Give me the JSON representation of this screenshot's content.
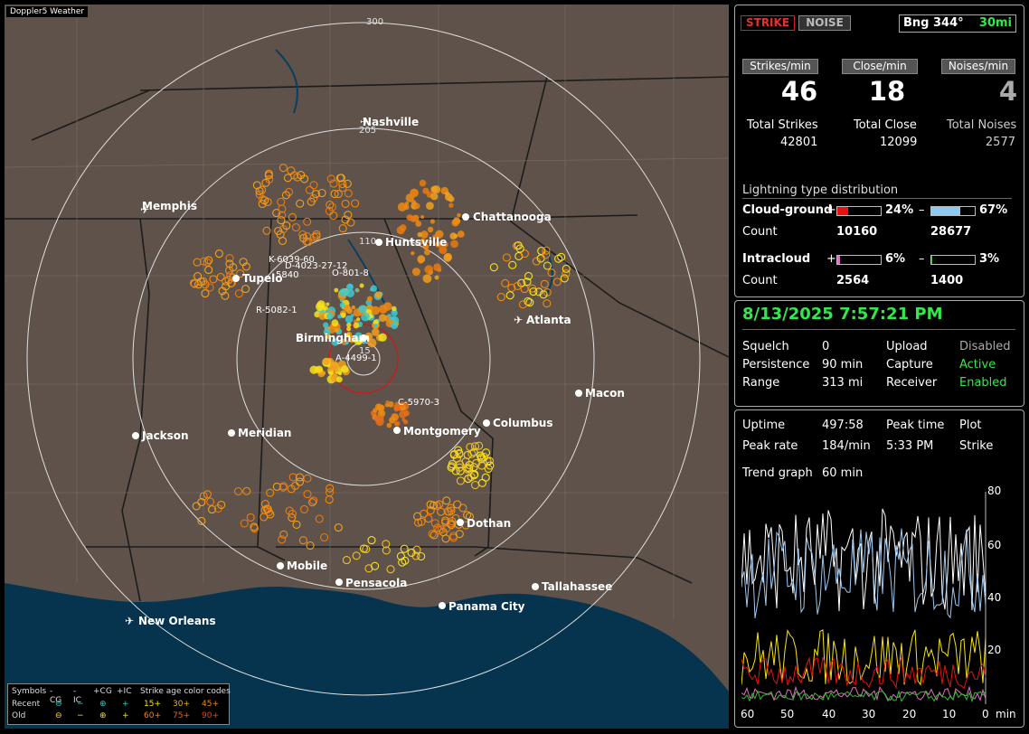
{
  "app": {
    "title": "Doppler5 Weather"
  },
  "map": {
    "range_labels": [
      "300",
      "205",
      "110",
      "15"
    ],
    "cities": [
      "Nashville",
      "Memphis",
      "Chattanooga",
      "Huntsville",
      "Tupelo",
      "Birmingham",
      "Atlanta",
      "Macon",
      "Jackson",
      "Meridian",
      "Montgomery",
      "Columbus",
      "Dothan",
      "Mobile",
      "Pensacola",
      "Tallahassee",
      "Panama City",
      "New Orleans"
    ],
    "cell_labels": [
      "K-6039-60",
      "D-4023-27-12",
      "O-801-8",
      "R-5082-1",
      "A-4499-1",
      "C-5970-3",
      "5840"
    ],
    "colors": {
      "land": "#5e524a",
      "water": "#06344e",
      "rings": "#d8d8d8",
      "strike_old": "#f08a10",
      "strike_recent": "#f7e21a"
    }
  },
  "legend": {
    "symbols_label": "Symbols",
    "cols": [
      "-CG",
      "-IC",
      "+CG",
      "+IC"
    ],
    "recent_label": "Recent",
    "old_label": "Old",
    "age_title": "Strike age color codes",
    "age_recent": [
      "15+",
      "30+",
      "45+"
    ],
    "age_old": [
      "60+",
      "75+",
      "90+"
    ]
  },
  "mode": {
    "strike": "STRIKE",
    "noise": "NOISE"
  },
  "bearing": {
    "label": "Bng 344°",
    "range": "30mi"
  },
  "rates": {
    "strikes_min": "Strikes/min",
    "close_min": "Close/min",
    "noises_min": "Noises/min",
    "strikes_val": "46",
    "close_val": "18",
    "noises_val": "4",
    "total_strikes_label": "Total Strikes",
    "total_close_label": "Total Close",
    "total_noises_label": "Total Noises",
    "total_strikes": "42801",
    "total_close": "12099",
    "total_noises": "2577"
  },
  "distribution": {
    "title": "Lightning type distribution",
    "cg_label": "Cloud-ground",
    "ic_label": "Intracloud",
    "count_label": "Count",
    "plus": "+",
    "minus": "–",
    "cg_pos_pct": "24%",
    "cg_neg_pct": "67%",
    "ic_pos_pct": "6%",
    "ic_neg_pct": "3%",
    "cg_pos_count": "10160",
    "cg_neg_count": "28677",
    "ic_pos_count": "2564",
    "ic_neg_count": "1400",
    "fills": {
      "cg_pos": 0.24,
      "cg_neg": 0.67,
      "ic_pos": 0.06,
      "ic_neg": 0.03
    },
    "fill_colors": {
      "cg_pos": "#e81010",
      "cg_neg": "#8cc8f0",
      "ic_pos": "#e070c0",
      "ic_neg": "#30c030"
    }
  },
  "status": {
    "datetime": "8/13/2025 7:57:21 PM",
    "squelch_label": "Squelch",
    "squelch": "0",
    "persistence_label": "Persistence",
    "persistence": "90 min",
    "range_label": "Range",
    "range": "313 mi",
    "upload_label": "Upload",
    "upload": "Disabled",
    "capture_label": "Capture",
    "capture": "Active",
    "receiver_label": "Receiver",
    "receiver": "Enabled"
  },
  "stats": {
    "uptime_label": "Uptime",
    "uptime": "497:58",
    "peak_time_label": "Peak time",
    "peak_time": "5:33 PM",
    "plot_label": "Plot",
    "plot": "Strike",
    "peak_rate_label": "Peak rate",
    "peak_rate": "184/min",
    "trend_label": "Trend graph",
    "trend": "60 min"
  },
  "trend_axis": {
    "y_ticks": [
      "80",
      "60",
      "40",
      "20"
    ],
    "x_ticks": [
      "60",
      "50",
      "40",
      "30",
      "20",
      "10",
      "0"
    ],
    "x_unit": "min"
  }
}
